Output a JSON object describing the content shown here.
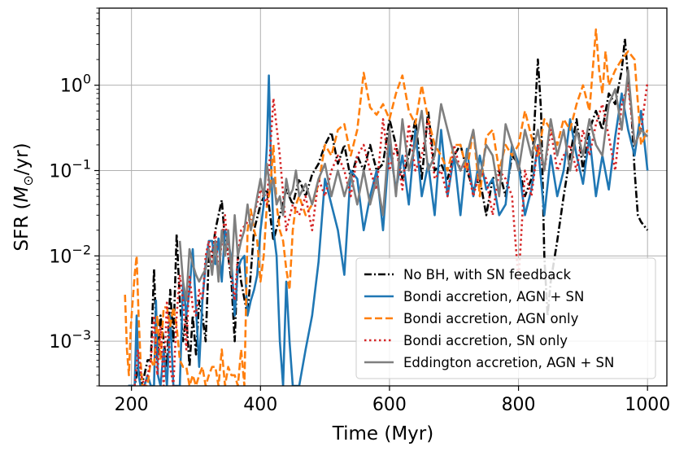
{
  "chart_data": {
    "type": "line",
    "xlabel": "Time (Myr)",
    "ylabel": "SFR",
    "ylabel_unit": "/yr",
    "ylabel_unit_symbol": "M",
    "ylabel_unit_subscript": "⊙",
    "yscale": "log",
    "xlim": [
      150,
      1030
    ],
    "ylim": [
      0.0003,
      8
    ],
    "x_ticks": [
      200,
      400,
      600,
      800,
      1000
    ],
    "x_tick_labels": [
      "200",
      "400",
      "600",
      "800",
      "1000"
    ],
    "y_ticks": [
      0.001,
      0.01,
      0.1,
      1
    ],
    "y_tick_labels": [
      {
        "base": "10",
        "exp": "−3"
      },
      {
        "base": "10",
        "exp": "−2"
      },
      {
        "base": "10",
        "exp": "−1"
      },
      {
        "base": "10",
        "exp": "0"
      }
    ],
    "grid": true,
    "legend_position": "lower-right",
    "series": [
      {
        "name": "No BH, with SN feedback",
        "color": "#000000",
        "dash": "dashdot",
        "x": [
          195,
          202,
          205,
          210,
          215,
          220,
          225,
          230,
          235,
          240,
          245,
          250,
          255,
          260,
          265,
          270,
          275,
          280,
          285,
          290,
          295,
          300,
          305,
          310,
          315,
          320,
          325,
          330,
          335,
          340,
          345,
          350,
          355,
          360,
          365,
          370,
          380,
          390,
          400,
          410,
          420,
          430,
          440,
          450,
          460,
          470,
          480,
          490,
          500,
          510,
          520,
          530,
          540,
          550,
          560,
          570,
          580,
          590,
          600,
          610,
          620,
          630,
          640,
          650,
          660,
          670,
          680,
          690,
          700,
          710,
          720,
          730,
          740,
          750,
          760,
          770,
          780,
          790,
          800,
          810,
          820,
          830,
          835,
          840,
          845,
          850,
          860,
          870,
          880,
          890,
          900,
          910,
          920,
          930,
          940,
          950,
          960,
          965,
          970,
          975,
          980,
          985,
          990,
          1000
        ],
        "y": [
          0.0003,
          0.0003,
          0.0003,
          0.0005,
          0.0003,
          0.0004,
          0.0006,
          0.0006,
          0.007,
          0.0006,
          0.002,
          0.001,
          0.0005,
          0.004,
          0.001,
          0.018,
          0.003,
          0.001,
          0.002,
          0.0005,
          0.002,
          0.0007,
          0.003,
          0.002,
          0.001,
          0.01,
          0.01,
          0.02,
          0.03,
          0.045,
          0.015,
          0.01,
          0.005,
          0.001,
          0.01,
          0.005,
          0.002,
          0.02,
          0.04,
          0.06,
          0.015,
          0.03,
          0.06,
          0.04,
          0.08,
          0.05,
          0.09,
          0.12,
          0.2,
          0.28,
          0.12,
          0.2,
          0.08,
          0.15,
          0.1,
          0.2,
          0.1,
          0.12,
          0.4,
          0.2,
          0.08,
          0.15,
          0.4,
          0.08,
          0.5,
          0.1,
          0.12,
          0.08,
          0.15,
          0.2,
          0.1,
          0.06,
          0.08,
          0.03,
          0.08,
          0.1,
          0.05,
          0.15,
          0.12,
          0.05,
          0.08,
          2.0,
          0.5,
          0.01,
          0.002,
          0.005,
          0.015,
          0.05,
          0.15,
          0.4,
          0.1,
          0.3,
          0.5,
          0.3,
          0.8,
          0.6,
          1.5,
          3.5,
          1.2,
          0.5,
          0.1,
          0.03,
          0.025,
          0.02
        ]
      },
      {
        "name": "Bondi accretion, AGN + SN",
        "color": "#1f77b4",
        "dash": "solid",
        "x": [
          195,
          200,
          205,
          208,
          211,
          214,
          217,
          220,
          225,
          230,
          235,
          238,
          241,
          245,
          250,
          255,
          260,
          265,
          270,
          275,
          280,
          285,
          290,
          295,
          300,
          305,
          310,
          315,
          320,
          325,
          330,
          335,
          340,
          345,
          350,
          355,
          360,
          365,
          370,
          375,
          380,
          385,
          390,
          395,
          400,
          405,
          410,
          413,
          416,
          420,
          425,
          430,
          435,
          440,
          445,
          450,
          455,
          460,
          470,
          480,
          490,
          500,
          510,
          520,
          530,
          540,
          550,
          560,
          570,
          580,
          590,
          600,
          610,
          620,
          630,
          640,
          650,
          660,
          670,
          680,
          690,
          700,
          710,
          720,
          730,
          740,
          750,
          760,
          770,
          780,
          790,
          800,
          810,
          820,
          830,
          840,
          850,
          860,
          870,
          880,
          890,
          900,
          910,
          920,
          930,
          940,
          950,
          960,
          970,
          980,
          990,
          1000
        ],
        "y": [
          0.0003,
          0.0003,
          0.0003,
          0.002,
          0.0004,
          0.0003,
          0.0003,
          0.0003,
          0.0004,
          0.0003,
          0.0003,
          0.003,
          0.0004,
          0.0003,
          0.0008,
          0.0003,
          0.002,
          0.0003,
          0.0003,
          0.0003,
          0.005,
          0.002,
          0.004,
          0.012,
          0.0025,
          0.0005,
          0.003,
          0.008,
          0.015,
          0.015,
          0.008,
          0.016,
          0.005,
          0.02,
          0.015,
          0.009,
          0.002,
          0.007,
          0.009,
          0.01,
          0.002,
          0.003,
          0.004,
          0.006,
          0.02,
          0.04,
          0.2,
          1.3,
          0.15,
          0.02,
          0.01,
          0.001,
          0.0003,
          0.005,
          0.001,
          0.0003,
          0.0003,
          0.0003,
          0.0008,
          0.002,
          0.0085,
          0.08,
          0.04,
          0.02,
          0.006,
          0.1,
          0.08,
          0.02,
          0.05,
          0.1,
          0.02,
          0.2,
          0.06,
          0.15,
          0.04,
          0.3,
          0.05,
          0.12,
          0.03,
          0.3,
          0.05,
          0.15,
          0.03,
          0.18,
          0.05,
          0.15,
          0.06,
          0.08,
          0.03,
          0.04,
          0.2,
          0.12,
          0.03,
          0.06,
          0.2,
          0.03,
          0.15,
          0.05,
          0.1,
          0.4,
          0.15,
          0.07,
          0.25,
          0.05,
          0.15,
          0.06,
          0.25,
          0.8,
          0.3,
          0.15,
          0.5,
          0.1
        ]
      },
      {
        "name": "Bondi accretion, AGN only",
        "color": "#ff7f0e",
        "dash": "dashed",
        "x": [
          190,
          193,
          196,
          199,
          202,
          205,
          208,
          211,
          214,
          217,
          220,
          225,
          230,
          235,
          240,
          245,
          250,
          255,
          260,
          265,
          270,
          275,
          280,
          285,
          290,
          295,
          300,
          305,
          310,
          315,
          320,
          325,
          330,
          335,
          340,
          345,
          350,
          355,
          360,
          365,
          370,
          375,
          380,
          385,
          390,
          395,
          400,
          405,
          410,
          415,
          420,
          425,
          430,
          435,
          440,
          445,
          450,
          455,
          460,
          470,
          480,
          490,
          500,
          510,
          520,
          530,
          540,
          550,
          560,
          570,
          580,
          590,
          600,
          610,
          620,
          630,
          640,
          650,
          660,
          670,
          680,
          690,
          700,
          710,
          720,
          730,
          740,
          750,
          760,
          770,
          780,
          790,
          800,
          810,
          820,
          830,
          840,
          850,
          860,
          870,
          880,
          890,
          900,
          910,
          920,
          925,
          930,
          935,
          940,
          950,
          960,
          970,
          980,
          990,
          1000
        ],
        "y": [
          0.0035,
          0.0008,
          0.0004,
          0.0015,
          0.003,
          0.006,
          0.01,
          0.002,
          0.0006,
          0.0003,
          0.0003,
          0.0003,
          0.0006,
          0.0005,
          0.002,
          0.0006,
          0.0025,
          0.0025,
          0.0015,
          0.0025,
          0.0015,
          0.0006,
          0.0005,
          0.0005,
          0.0003,
          0.0004,
          0.0003,
          0.0004,
          0.0005,
          0.0003,
          0.0004,
          0.0005,
          0.0005,
          0.0003,
          0.0008,
          0.0003,
          0.0005,
          0.0004,
          0.0004,
          0.0003,
          0.0008,
          0.0003,
          0.02,
          0.035,
          0.02,
          0.015,
          0.005,
          0.01,
          0.04,
          0.06,
          0.2,
          0.04,
          0.02,
          0.015,
          0.007,
          0.004,
          0.02,
          0.04,
          0.05,
          0.03,
          0.04,
          0.07,
          0.2,
          0.15,
          0.3,
          0.35,
          0.15,
          0.3,
          1.4,
          0.55,
          0.45,
          0.6,
          0.4,
          0.8,
          1.3,
          0.5,
          0.35,
          1.0,
          0.4,
          0.2,
          0.15,
          0.1,
          0.2,
          0.2,
          0.1,
          0.3,
          0.05,
          0.25,
          0.3,
          0.1,
          0.2,
          0.15,
          0.2,
          0.5,
          0.25,
          0.15,
          0.4,
          0.3,
          0.2,
          0.4,
          0.3,
          0.6,
          1.0,
          0.5,
          4.5,
          1.5,
          0.8,
          2.5,
          1.0,
          1.5,
          2.0,
          2.5,
          2.0,
          0.2,
          0.3
        ]
      },
      {
        "name": "Bondi accretion, SN only",
        "color": "#d62728",
        "dash": "dotted",
        "x": [
          205,
          210,
          215,
          220,
          225,
          230,
          235,
          240,
          245,
          250,
          255,
          260,
          265,
          270,
          275,
          280,
          285,
          290,
          295,
          300,
          305,
          310,
          315,
          320,
          325,
          330,
          335,
          340,
          345,
          350,
          355,
          360,
          365,
          370,
          380,
          390,
          400,
          410,
          420,
          430,
          440,
          450,
          460,
          470,
          480,
          490,
          500,
          510,
          520,
          530,
          540,
          550,
          560,
          570,
          580,
          590,
          600,
          610,
          620,
          630,
          640,
          650,
          660,
          670,
          680,
          690,
          700,
          710,
          720,
          730,
          740,
          750,
          760,
          770,
          780,
          790,
          800,
          810,
          820,
          830,
          840,
          850,
          860,
          870,
          880,
          890,
          900,
          910,
          920,
          930,
          940,
          950,
          960,
          970,
          980,
          990,
          1000
        ],
        "y": [
          0.0003,
          0.0008,
          0.0004,
          0.0003,
          0.0004,
          0.0006,
          0.002,
          0.0004,
          0.0015,
          0.0003,
          0.003,
          0.0005,
          0.0003,
          0.002,
          0.006,
          0.003,
          0.0008,
          0.006,
          0.0025,
          0.002,
          0.004,
          0.003,
          0.01,
          0.015,
          0.008,
          0.02,
          0.006,
          0.015,
          0.03,
          0.01,
          0.006,
          0.003,
          0.01,
          0.02,
          0.025,
          0.03,
          0.06,
          0.04,
          0.7,
          0.15,
          0.02,
          0.04,
          0.03,
          0.05,
          0.02,
          0.08,
          0.05,
          0.1,
          0.15,
          0.1,
          0.05,
          0.15,
          0.2,
          0.1,
          0.06,
          0.4,
          0.1,
          0.2,
          0.06,
          0.35,
          0.1,
          0.15,
          0.4,
          0.08,
          0.1,
          0.05,
          0.2,
          0.1,
          0.12,
          0.05,
          0.1,
          0.08,
          0.03,
          0.1,
          0.08,
          0.05,
          0.005,
          0.1,
          0.05,
          0.2,
          0.1,
          0.3,
          0.1,
          0.15,
          0.2,
          0.1,
          0.3,
          0.15,
          0.35,
          0.6,
          0.25,
          0.1,
          0.6,
          1.0,
          0.2,
          0.3,
          1.1
        ]
      },
      {
        "name": "Eddington accretion, AGN + SN",
        "color": "#7f7f7f",
        "dash": "solid",
        "x": [
          275,
          280,
          285,
          290,
          295,
          300,
          305,
          310,
          315,
          320,
          325,
          330,
          335,
          340,
          345,
          350,
          355,
          360,
          365,
          370,
          375,
          380,
          385,
          390,
          395,
          400,
          405,
          410,
          415,
          420,
          425,
          430,
          435,
          440,
          445,
          450,
          455,
          460,
          470,
          480,
          490,
          500,
          510,
          520,
          530,
          540,
          550,
          560,
          570,
          580,
          590,
          600,
          610,
          620,
          630,
          640,
          650,
          660,
          670,
          680,
          690,
          700,
          710,
          720,
          730,
          740,
          750,
          760,
          770,
          780,
          790,
          800,
          810,
          820,
          830,
          840,
          850,
          860,
          870,
          880,
          890,
          900,
          910,
          920,
          930,
          940,
          950,
          960,
          970,
          980,
          990,
          1000
        ],
        "y": [
          0.015,
          0.005,
          0.003,
          0.012,
          0.008,
          0.006,
          0.005,
          0.006,
          0.007,
          0.012,
          0.006,
          0.015,
          0.005,
          0.02,
          0.01,
          0.02,
          0.006,
          0.03,
          0.01,
          0.015,
          0.02,
          0.04,
          0.02,
          0.03,
          0.05,
          0.08,
          0.05,
          0.12,
          0.06,
          0.08,
          0.04,
          0.05,
          0.03,
          0.08,
          0.05,
          0.06,
          0.1,
          0.05,
          0.07,
          0.04,
          0.08,
          0.12,
          0.05,
          0.1,
          0.05,
          0.09,
          0.04,
          0.1,
          0.04,
          0.08,
          0.03,
          0.3,
          0.05,
          0.4,
          0.1,
          0.2,
          0.5,
          0.1,
          0.15,
          0.6,
          0.3,
          0.15,
          0.1,
          0.15,
          0.3,
          0.08,
          0.2,
          0.15,
          0.05,
          0.35,
          0.2,
          0.1,
          0.3,
          0.15,
          0.3,
          0.1,
          0.4,
          0.15,
          0.3,
          0.1,
          0.3,
          0.15,
          0.4,
          0.2,
          0.15,
          0.6,
          0.9,
          0.3,
          1.5,
          0.2,
          0.3,
          0.25
        ]
      }
    ]
  }
}
